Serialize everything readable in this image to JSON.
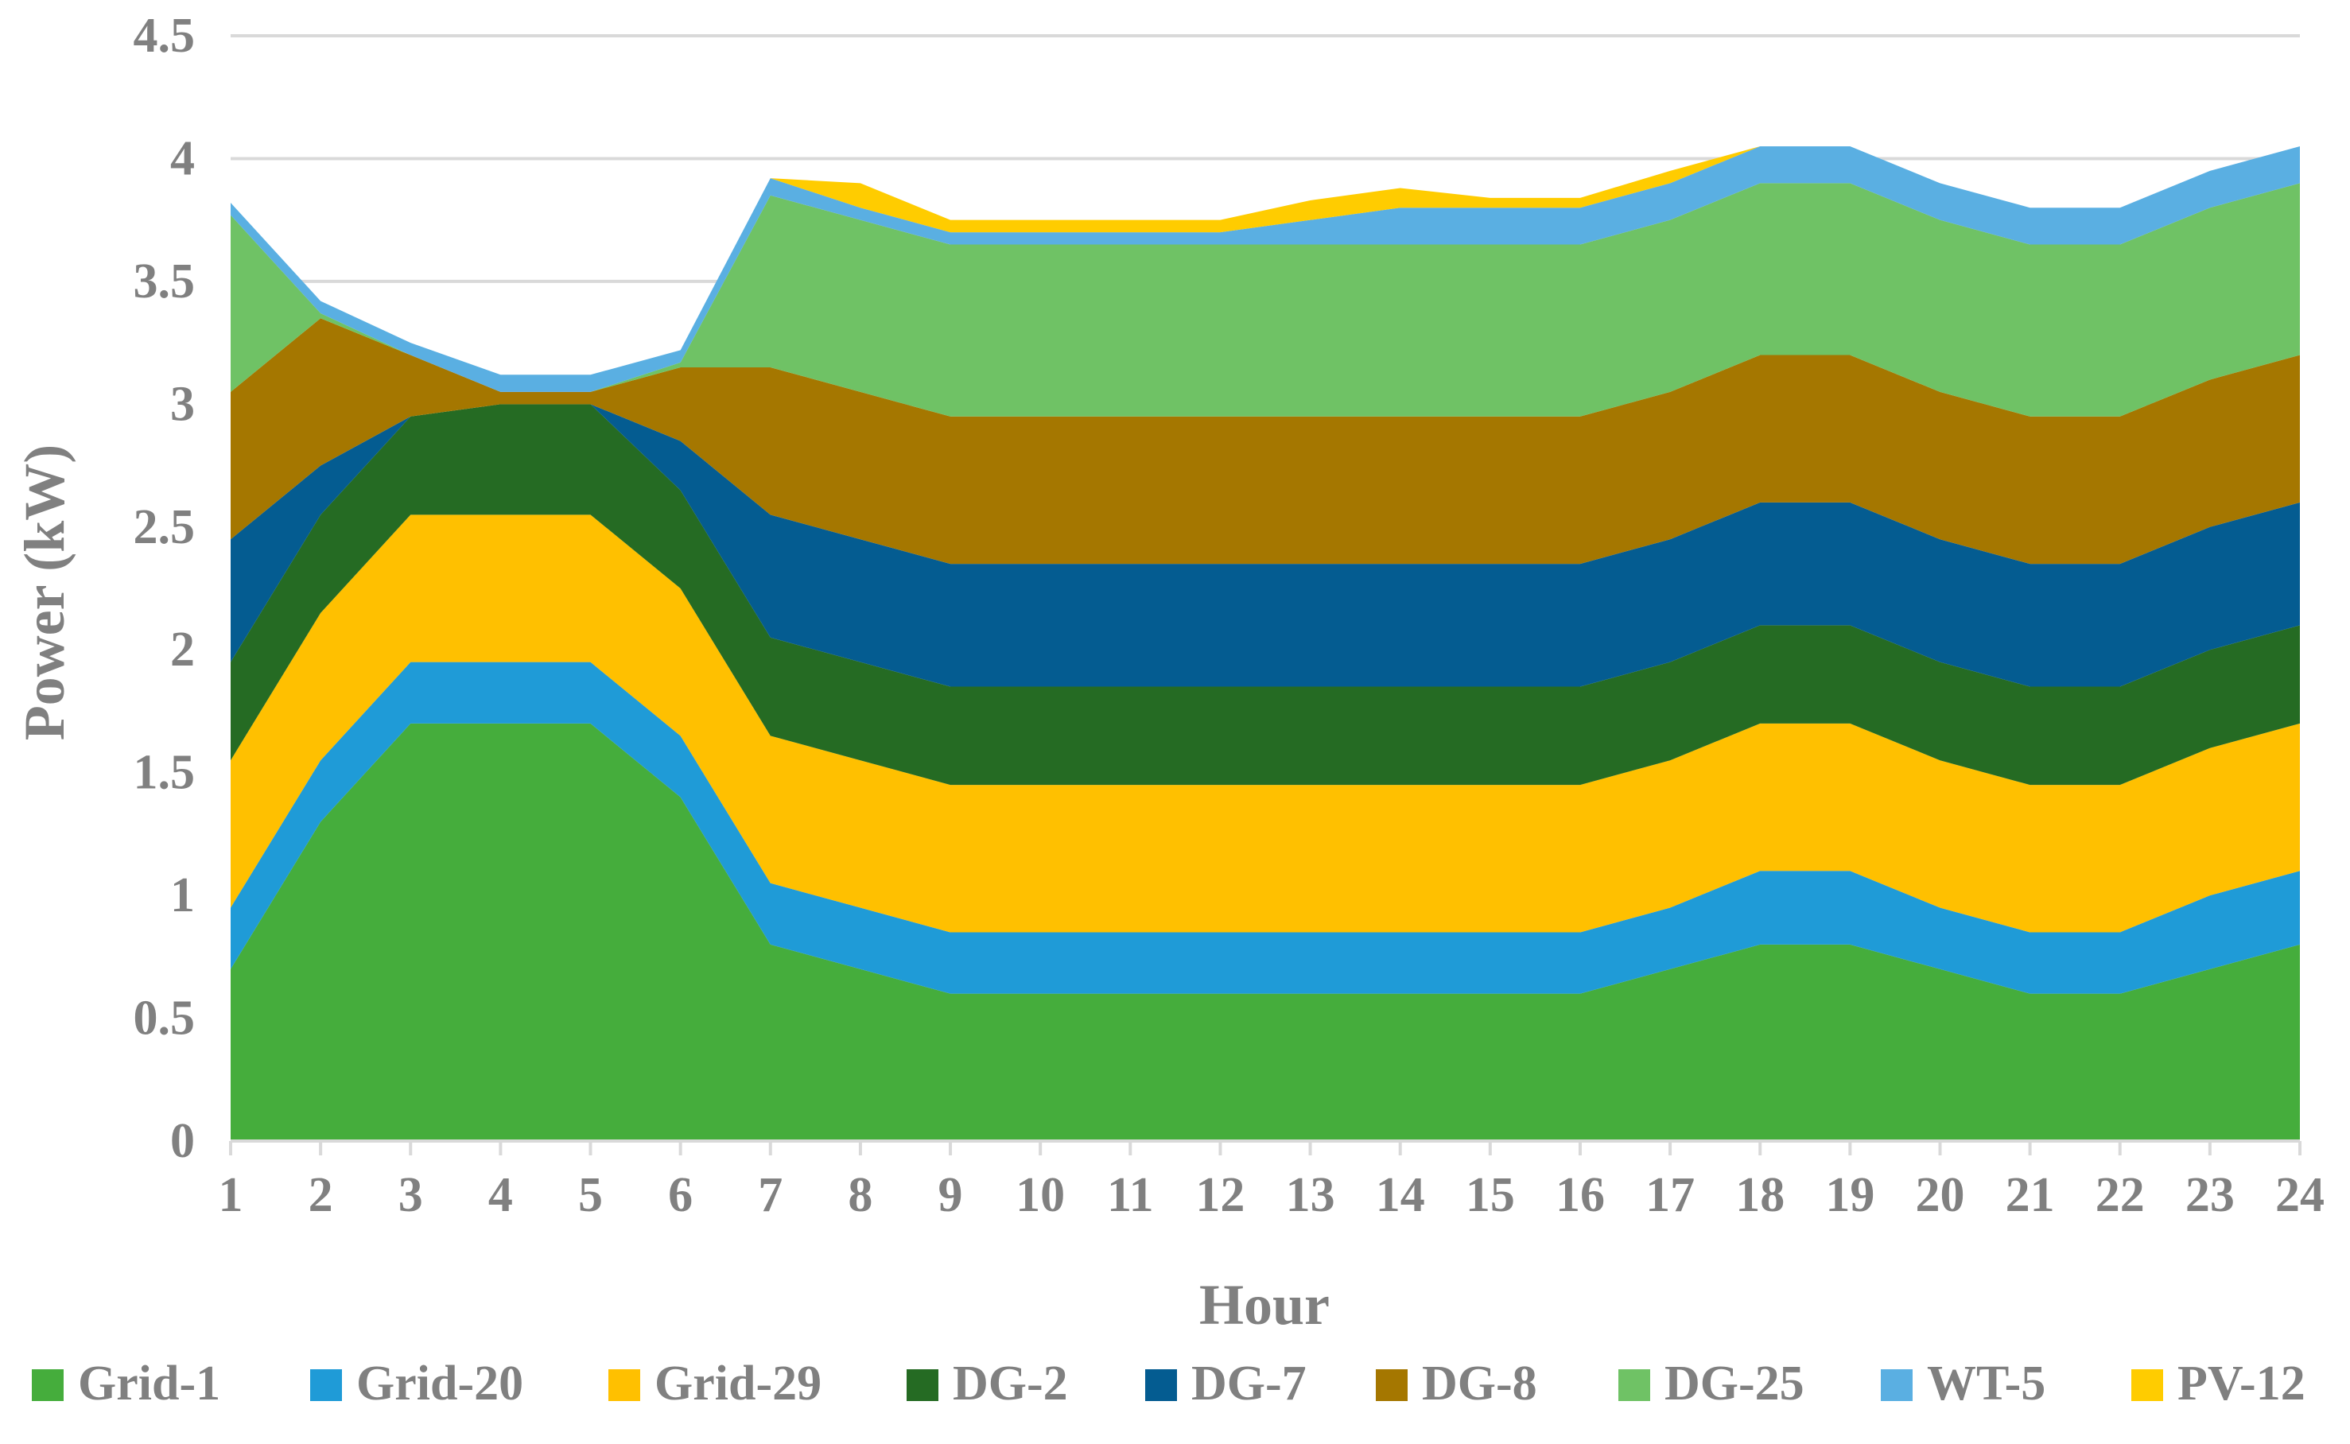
{
  "chart_data": {
    "type": "area",
    "stacked": true,
    "title": "",
    "xlabel": "Hour",
    "ylabel": "Power (kW)",
    "ylim": [
      0,
      4.5
    ],
    "yticks": [
      "0",
      "0.5",
      "1",
      "1.5",
      "2",
      "2.5",
      "3",
      "3.5",
      "4",
      "4.5"
    ],
    "x": [
      1,
      2,
      3,
      4,
      5,
      6,
      7,
      8,
      9,
      10,
      11,
      12,
      13,
      14,
      15,
      16,
      17,
      18,
      19,
      20,
      21,
      22,
      23,
      24
    ],
    "grid": true,
    "legend_position": "bottom",
    "series": [
      {
        "name": "Grid-1",
        "color": "#45AD3C",
        "values": [
          0.7,
          1.3,
          1.7,
          1.7,
          1.7,
          1.4,
          0.8,
          0.7,
          0.6,
          0.6,
          0.6,
          0.6,
          0.6,
          0.6,
          0.6,
          0.6,
          0.7,
          0.8,
          0.8,
          0.7,
          0.6,
          0.6,
          0.7,
          0.8
        ]
      },
      {
        "name": "Grid-20",
        "color": "#1F9BD7",
        "values": [
          0.25,
          0.25,
          0.25,
          0.25,
          0.25,
          0.25,
          0.25,
          0.25,
          0.25,
          0.25,
          0.25,
          0.25,
          0.25,
          0.25,
          0.25,
          0.25,
          0.25,
          0.3,
          0.3,
          0.25,
          0.25,
          0.25,
          0.3,
          0.3
        ]
      },
      {
        "name": "Grid-29",
        "color": "#FFC000",
        "values": [
          0.6,
          0.6,
          0.6,
          0.6,
          0.6,
          0.6,
          0.6,
          0.6,
          0.6,
          0.6,
          0.6,
          0.6,
          0.6,
          0.6,
          0.6,
          0.6,
          0.6,
          0.6,
          0.6,
          0.6,
          0.6,
          0.6,
          0.6,
          0.6
        ]
      },
      {
        "name": "DG-2",
        "color": "#256B23",
        "values": [
          0.4,
          0.4,
          0.4,
          0.45,
          0.45,
          0.4,
          0.4,
          0.4,
          0.4,
          0.4,
          0.4,
          0.4,
          0.4,
          0.4,
          0.4,
          0.4,
          0.4,
          0.4,
          0.4,
          0.4,
          0.4,
          0.4,
          0.4,
          0.4
        ]
      },
      {
        "name": "DG-7",
        "color": "#045C91",
        "values": [
          0.5,
          0.2,
          0.0,
          0.0,
          0.0,
          0.2,
          0.5,
          0.5,
          0.5,
          0.5,
          0.5,
          0.5,
          0.5,
          0.5,
          0.5,
          0.5,
          0.5,
          0.5,
          0.5,
          0.5,
          0.5,
          0.5,
          0.5,
          0.5
        ]
      },
      {
        "name": "DG-8",
        "color": "#A57700",
        "values": [
          0.6,
          0.6,
          0.25,
          0.05,
          0.05,
          0.3,
          0.6,
          0.6,
          0.6,
          0.6,
          0.6,
          0.6,
          0.6,
          0.6,
          0.6,
          0.6,
          0.6,
          0.6,
          0.6,
          0.6,
          0.6,
          0.6,
          0.6,
          0.6
        ]
      },
      {
        "name": "DG-25",
        "color": "#6FC265",
        "values": [
          0.72,
          0.02,
          0.0,
          0.0,
          0.0,
          0.02,
          0.7,
          0.7,
          0.7,
          0.7,
          0.7,
          0.7,
          0.7,
          0.7,
          0.7,
          0.7,
          0.7,
          0.7,
          0.7,
          0.7,
          0.7,
          0.7,
          0.7,
          0.7
        ]
      },
      {
        "name": "WT-5",
        "color": "#5AAFE2",
        "values": [
          0.05,
          0.05,
          0.05,
          0.07,
          0.07,
          0.05,
          0.07,
          0.05,
          0.05,
          0.05,
          0.05,
          0.05,
          0.1,
          0.15,
          0.15,
          0.15,
          0.15,
          0.15,
          0.15,
          0.15,
          0.15,
          0.15,
          0.15,
          0.15
        ]
      },
      {
        "name": "PV-12",
        "color": "#FFCC00",
        "values": [
          0.0,
          0.0,
          0.0,
          0.0,
          0.0,
          0.0,
          0.0,
          0.1,
          0.05,
          0.05,
          0.05,
          0.05,
          0.08,
          0.08,
          0.04,
          0.04,
          0.05,
          0.0,
          0.0,
          0.0,
          0.0,
          0.0,
          0.0,
          0.0
        ]
      }
    ]
  }
}
